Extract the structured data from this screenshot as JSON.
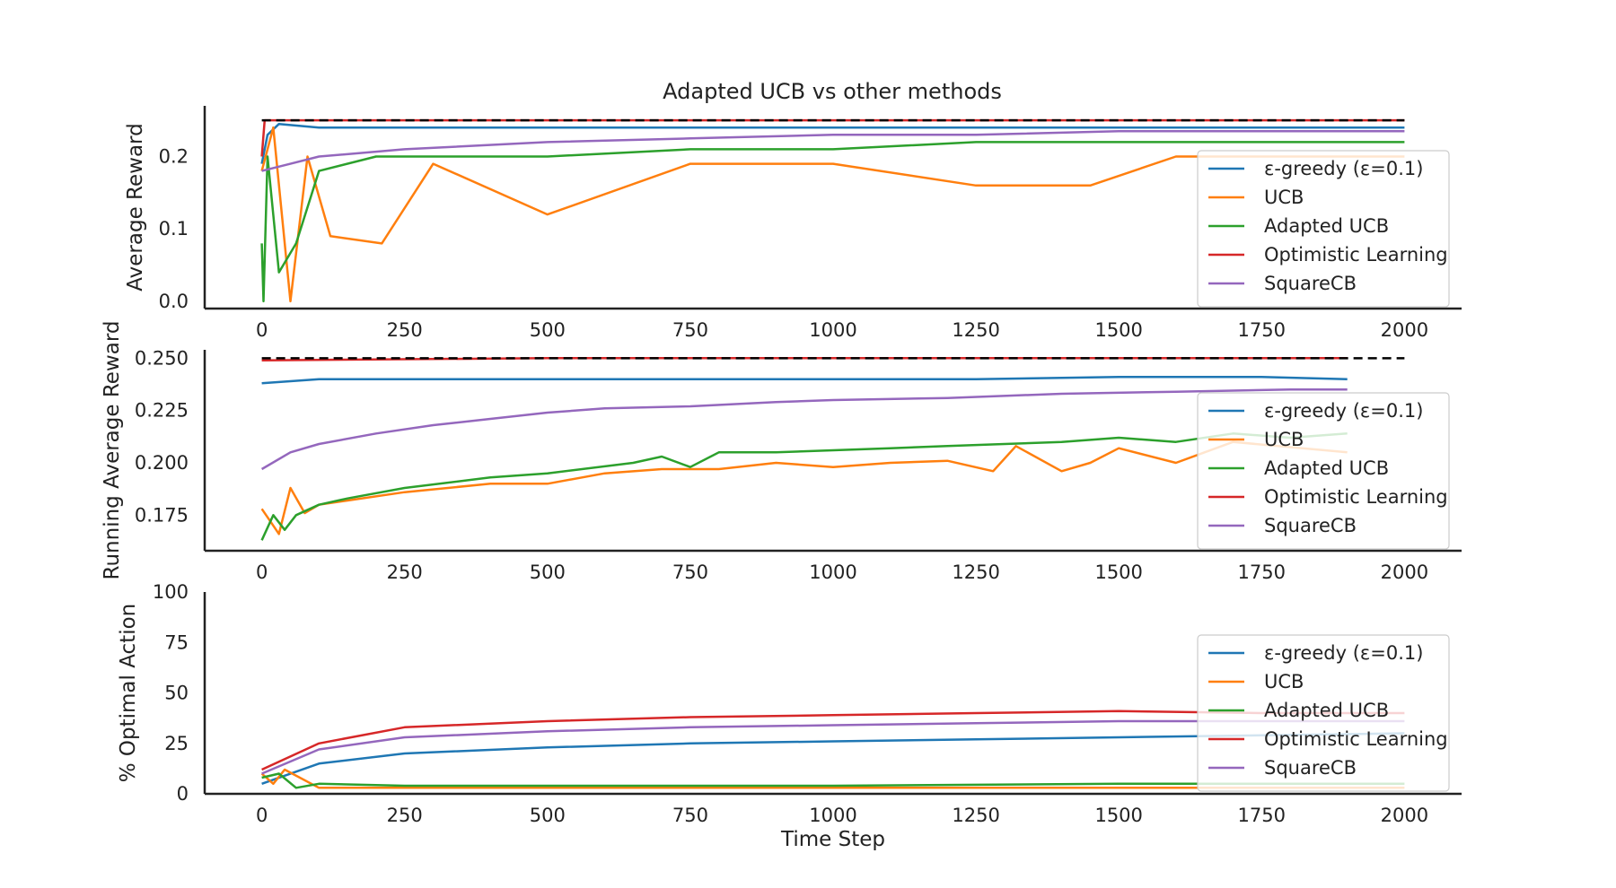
{
  "title": "Adapted UCB vs other methods",
  "legend_entries": [
    "ε-greedy (ε=0.1)",
    "UCB",
    "Adapted UCB",
    "Optimistic Learning",
    "SquareCB"
  ],
  "colors": {
    "egreedy": "#1f77b4",
    "ucb": "#ff7f0e",
    "adapted_ucb": "#2ca02c",
    "optimistic": "#d62728",
    "squarecb": "#9467bd",
    "reference": "#000000"
  },
  "chart_data": [
    {
      "type": "line",
      "title": "Adapted UCB vs other methods",
      "xlabel": "",
      "ylabel": "Average Reward",
      "xlim": [
        -100,
        2100
      ],
      "ylim": [
        -0.01,
        0.27
      ],
      "xticks": [
        "0",
        "250",
        "500",
        "750",
        "1000",
        "1250",
        "1500",
        "1750",
        "2000"
      ],
      "yticks": [
        "0.0",
        "0.1",
        "0.2"
      ],
      "reference_line": {
        "style": "dashed",
        "value": 0.25
      },
      "legend_position": "lower right",
      "series": [
        {
          "name": "ε-greedy (ε=0.1)",
          "x": [
            0,
            10,
            30,
            100,
            200,
            500,
            1000,
            1500,
            2000
          ],
          "y": [
            0.19,
            0.23,
            0.245,
            0.24,
            0.24,
            0.24,
            0.24,
            0.24,
            0.24
          ]
        },
        {
          "name": "UCB",
          "x": [
            0,
            10,
            20,
            50,
            80,
            120,
            210,
            300,
            500,
            750,
            1000,
            1250,
            1450,
            1600,
            1750,
            2000
          ],
          "y": [
            0.18,
            0.21,
            0.24,
            0.0,
            0.2,
            0.09,
            0.08,
            0.19,
            0.12,
            0.19,
            0.19,
            0.16,
            0.16,
            0.2,
            0.2,
            0.2
          ]
        },
        {
          "name": "Adapted UCB",
          "x": [
            0,
            3,
            10,
            30,
            60,
            100,
            200,
            500,
            750,
            1000,
            1250,
            1500,
            1750,
            2000
          ],
          "y": [
            0.08,
            0.0,
            0.2,
            0.04,
            0.08,
            0.18,
            0.2,
            0.2,
            0.21,
            0.21,
            0.22,
            0.22,
            0.22,
            0.22
          ]
        },
        {
          "name": "Optimistic Learning",
          "x": [
            0,
            5,
            100,
            500,
            1000,
            1500,
            2000
          ],
          "y": [
            0.2,
            0.25,
            0.25,
            0.25,
            0.25,
            0.25,
            0.25
          ]
        },
        {
          "name": "SquareCB",
          "x": [
            0,
            50,
            100,
            250,
            500,
            750,
            1000,
            1250,
            1500,
            1750,
            2000
          ],
          "y": [
            0.18,
            0.19,
            0.2,
            0.21,
            0.22,
            0.225,
            0.23,
            0.23,
            0.235,
            0.235,
            0.235
          ]
        }
      ]
    },
    {
      "type": "line",
      "title": "",
      "xlabel": "",
      "ylabel": "Running Average Reward",
      "xlim": [
        -100,
        2100
      ],
      "ylim": [
        0.158,
        0.254
      ],
      "xticks": [
        "0",
        "250",
        "500",
        "750",
        "1000",
        "1250",
        "1500",
        "1750",
        "2000"
      ],
      "yticks": [
        "0.175",
        "0.200",
        "0.225",
        "0.250"
      ],
      "reference_line": {
        "style": "dashed",
        "value": 0.25
      },
      "legend_position": "lower right",
      "series": [
        {
          "name": "ε-greedy (ε=0.1)",
          "x": [
            0,
            100,
            250,
            500,
            750,
            1000,
            1250,
            1500,
            1750,
            1900
          ],
          "y": [
            0.238,
            0.24,
            0.24,
            0.24,
            0.24,
            0.24,
            0.24,
            0.241,
            0.241,
            0.24
          ]
        },
        {
          "name": "UCB",
          "x": [
            0,
            15,
            30,
            50,
            75,
            100,
            150,
            250,
            400,
            500,
            600,
            700,
            800,
            900,
            1000,
            1100,
            1200,
            1280,
            1320,
            1400,
            1450,
            1500,
            1600,
            1700,
            1900
          ],
          "y": [
            0.178,
            0.172,
            0.166,
            0.188,
            0.176,
            0.18,
            0.182,
            0.186,
            0.19,
            0.19,
            0.195,
            0.197,
            0.197,
            0.2,
            0.198,
            0.2,
            0.201,
            0.196,
            0.208,
            0.196,
            0.2,
            0.207,
            0.2,
            0.21,
            0.205
          ]
        },
        {
          "name": "Adapted UCB",
          "x": [
            0,
            20,
            40,
            60,
            100,
            150,
            250,
            400,
            500,
            650,
            700,
            750,
            800,
            900,
            1000,
            1100,
            1200,
            1300,
            1400,
            1500,
            1600,
            1700,
            1800,
            1900
          ],
          "y": [
            0.163,
            0.175,
            0.168,
            0.175,
            0.18,
            0.183,
            0.188,
            0.193,
            0.195,
            0.2,
            0.203,
            0.198,
            0.205,
            0.205,
            0.206,
            0.207,
            0.208,
            0.209,
            0.21,
            0.212,
            0.21,
            0.214,
            0.212,
            0.214
          ]
        },
        {
          "name": "Optimistic Learning",
          "x": [
            0,
            500,
            1000,
            1500,
            1900
          ],
          "y": [
            0.249,
            0.25,
            0.25,
            0.25,
            0.25
          ]
        },
        {
          "name": "SquareCB",
          "x": [
            0,
            50,
            100,
            200,
            300,
            400,
            500,
            600,
            750,
            900,
            1000,
            1200,
            1400,
            1600,
            1800,
            1900
          ],
          "y": [
            0.197,
            0.205,
            0.209,
            0.214,
            0.218,
            0.221,
            0.224,
            0.226,
            0.227,
            0.229,
            0.23,
            0.231,
            0.233,
            0.234,
            0.235,
            0.235
          ]
        }
      ]
    },
    {
      "type": "line",
      "title": "",
      "xlabel": "Time Step",
      "ylabel": "% Optimal Action",
      "xlim": [
        -100,
        2100
      ],
      "ylim": [
        0,
        100
      ],
      "xticks": [
        "0",
        "250",
        "500",
        "750",
        "1000",
        "1250",
        "1500",
        "1750",
        "2000"
      ],
      "yticks": [
        "0",
        "25",
        "50",
        "75",
        "100"
      ],
      "legend_position": "right",
      "series": [
        {
          "name": "ε-greedy (ε=0.1)",
          "x": [
            0,
            100,
            250,
            500,
            750,
            1000,
            1250,
            1500,
            1750,
            2000
          ],
          "y": [
            5,
            15,
            20,
            23,
            25,
            26,
            27,
            28,
            29,
            30
          ]
        },
        {
          "name": "UCB",
          "x": [
            0,
            20,
            40,
            100,
            250,
            500,
            1000,
            1500,
            2000
          ],
          "y": [
            10,
            5,
            12,
            3,
            3,
            3,
            3,
            3,
            3
          ]
        },
        {
          "name": "Adapted UCB",
          "x": [
            0,
            30,
            60,
            100,
            250,
            500,
            1000,
            1500,
            2000
          ],
          "y": [
            8,
            10,
            3,
            5,
            4,
            4,
            4,
            5,
            5
          ]
        },
        {
          "name": "Optimistic Learning",
          "x": [
            0,
            100,
            250,
            500,
            750,
            1000,
            1250,
            1500,
            1750,
            2000
          ],
          "y": [
            12,
            25,
            33,
            36,
            38,
            39,
            40,
            41,
            40,
            40
          ]
        },
        {
          "name": "SquareCB",
          "x": [
            0,
            100,
            250,
            500,
            750,
            1000,
            1250,
            1500,
            1750,
            2000
          ],
          "y": [
            10,
            22,
            28,
            31,
            33,
            34,
            35,
            36,
            36,
            36
          ]
        }
      ]
    }
  ]
}
